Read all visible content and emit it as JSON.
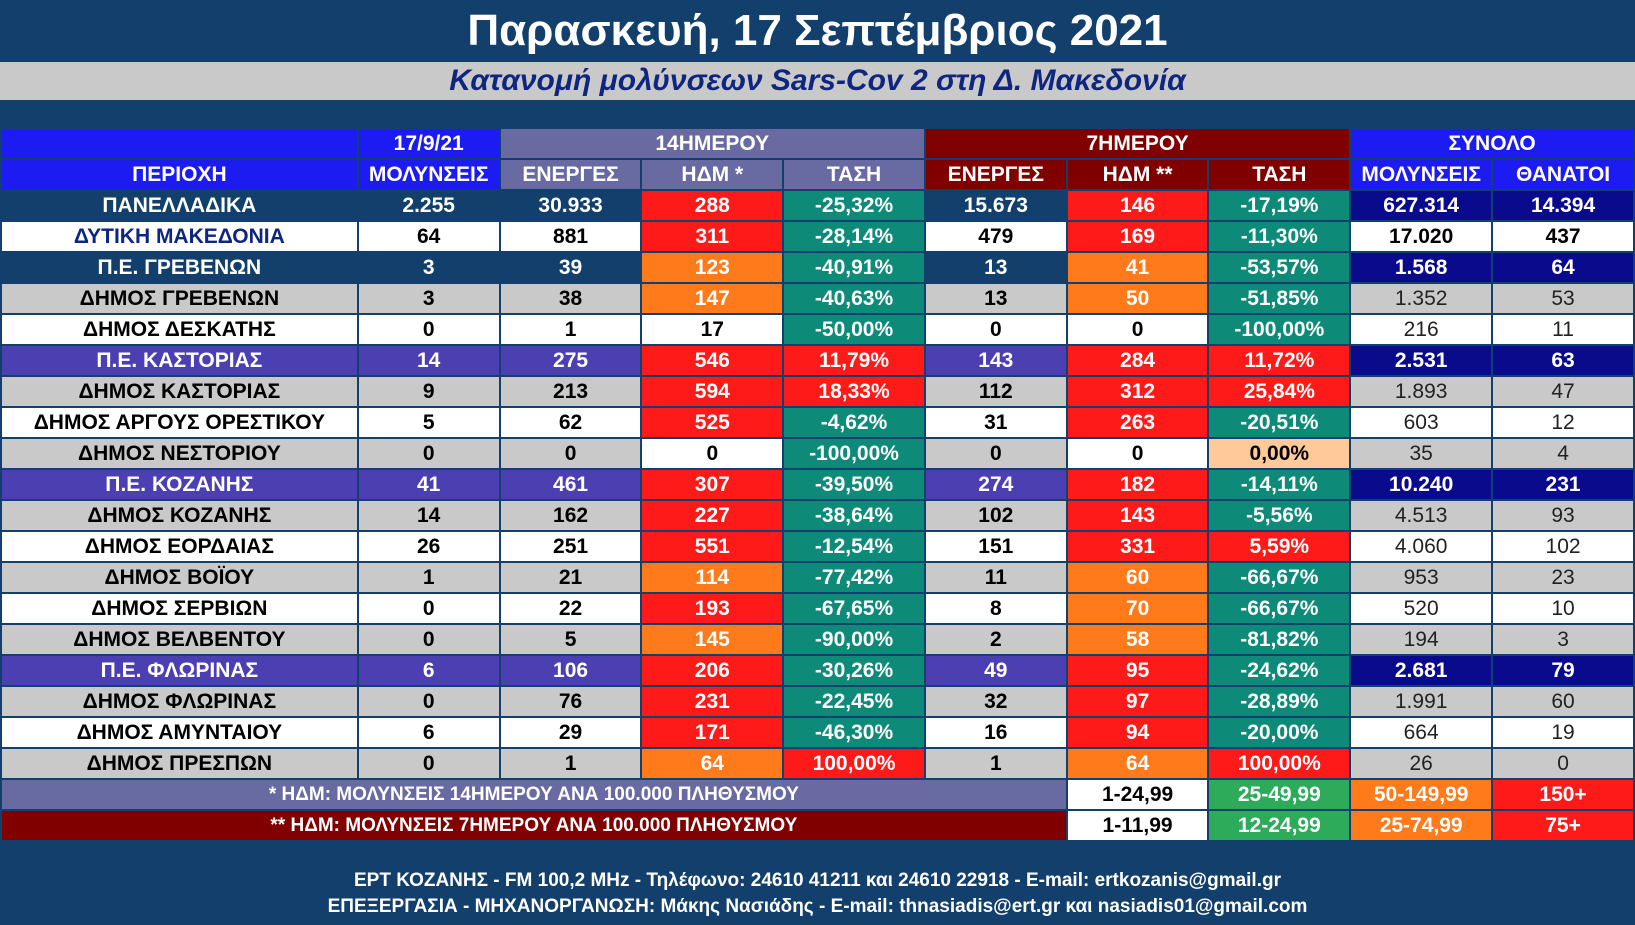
{
  "title": "Παρασκευή, 17 Σεπτέμβριος 2021",
  "subtitle": "Κατανομή μολύνσεων Sars-Cov 2 στη Δ. Μακεδονία",
  "header": {
    "region_label": "ΠΕΡΙΟΧΗ",
    "date_label": "17/9/21",
    "group_14": "14ΗΜΕΡΟΥ",
    "group_7": "7ΗΜΕΡΟΥ",
    "group_total": "ΣΥΝΟΛΟ",
    "col_infections": "ΜΟΛΥΝΣΕΙΣ",
    "col_active_14": "ΕΝΕΡΓΕΣ",
    "col_hdm_14": "ΗΔΜ *",
    "col_trend_14": "ΤΑΣΗ",
    "col_active_7": "ΕΝΕΡΓΕΣ",
    "col_hdm_7": "ΗΔΜ **",
    "col_trend_7": "ΤΑΣΗ",
    "col_total_infections": "ΜΟΛΥΝΣΕΙΣ",
    "col_deaths": "ΘΑΝΑΤΟΙ"
  },
  "colors": {
    "navy": "#123f6b",
    "white": "#ffffff",
    "grey": "#c9c9c9",
    "purple": "#4b3fb2",
    "red": "#ff1a1a",
    "orange": "#ff7a1a",
    "teal": "#0d8a78",
    "peach": "#ffc99a",
    "green": "#2eab5a",
    "darkblue": "#0a0a8c"
  },
  "rows": [
    {
      "type": "total",
      "name": "ΠΑΝΕΛΛΑΔΙΚΑ",
      "center": true,
      "infections": "2.255",
      "active14": "30.933",
      "hdm14": "288",
      "hdm14_color": "red",
      "trend14": "-25,32%",
      "trend14_color": "teal",
      "active7": "15.673",
      "hdm7": "146",
      "hdm7_color": "red",
      "trend7": "-17,19%",
      "trend7_color": "teal",
      "total": "627.314",
      "deaths": "14.394"
    },
    {
      "type": "region",
      "name": "ΔΥΤΙΚΗ ΜΑΚΕΔΟΝΙΑ",
      "center": true,
      "infections": "64",
      "active14": "881",
      "hdm14": "311",
      "hdm14_color": "red",
      "trend14": "-28,14%",
      "trend14_color": "teal",
      "active7": "479",
      "hdm7": "169",
      "hdm7_color": "red",
      "trend7": "-11,30%",
      "trend7_color": "teal",
      "total": "17.020",
      "deaths": "437"
    },
    {
      "type": "pe_navy",
      "name": "Π.Ε. ΓΡΕΒΕΝΩΝ",
      "center": true,
      "infections": "3",
      "active14": "39",
      "hdm14": "123",
      "hdm14_color": "orange",
      "trend14": "-40,91%",
      "trend14_color": "teal",
      "active7": "13",
      "hdm7": "41",
      "hdm7_color": "orange",
      "trend7": "-53,57%",
      "trend7_color": "teal",
      "total": "1.568",
      "deaths": "64"
    },
    {
      "type": "grey",
      "name": "ΔΗΜΟΣ ΓΡΕΒΕΝΩΝ",
      "center": false,
      "infections": "3",
      "active14": "38",
      "hdm14": "147",
      "hdm14_color": "orange",
      "trend14": "-40,63%",
      "trend14_color": "teal",
      "active7": "13",
      "hdm7": "50",
      "hdm7_color": "orange",
      "trend7": "-51,85%",
      "trend7_color": "teal",
      "total": "1.352",
      "deaths": "53"
    },
    {
      "type": "white",
      "name": "ΔΗΜΟΣ ΔΕΣΚΑΤΗΣ",
      "center": false,
      "infections": "0",
      "active14": "1",
      "hdm14": "17",
      "hdm14_color": "white",
      "trend14": "-50,00%",
      "trend14_color": "teal",
      "active7": "0",
      "hdm7": "0",
      "hdm7_color": "white",
      "trend7": "-100,00%",
      "trend7_color": "teal",
      "total": "216",
      "deaths": "11"
    },
    {
      "type": "pe_purple",
      "name": "Π.Ε. ΚΑΣΤΟΡΙΑΣ",
      "center": true,
      "infections": "14",
      "active14": "275",
      "hdm14": "546",
      "hdm14_color": "red",
      "trend14": "11,79%",
      "trend14_color": "red",
      "active7": "143",
      "hdm7": "284",
      "hdm7_color": "red",
      "trend7": "11,72%",
      "trend7_color": "red",
      "total": "2.531",
      "deaths": "63"
    },
    {
      "type": "grey",
      "name": "ΔΗΜΟΣ ΚΑΣΤΟΡΙΑΣ",
      "center": false,
      "infections": "9",
      "active14": "213",
      "hdm14": "594",
      "hdm14_color": "red",
      "trend14": "18,33%",
      "trend14_color": "red",
      "active7": "112",
      "hdm7": "312",
      "hdm7_color": "red",
      "trend7": "25,84%",
      "trend7_color": "red",
      "total": "1.893",
      "deaths": "47"
    },
    {
      "type": "white",
      "name": "ΔΗΜΟΣ ΑΡΓΟΥΣ ΟΡΕΣΤΙΚΟΥ",
      "center": false,
      "infections": "5",
      "active14": "62",
      "hdm14": "525",
      "hdm14_color": "red",
      "trend14": "-4,62%",
      "trend14_color": "teal",
      "active7": "31",
      "hdm7": "263",
      "hdm7_color": "red",
      "trend7": "-20,51%",
      "trend7_color": "teal",
      "total": "603",
      "deaths": "12"
    },
    {
      "type": "grey",
      "name": "ΔΗΜΟΣ ΝΕΣΤΟΡΙΟΥ",
      "center": false,
      "infections": "0",
      "active14": "0",
      "hdm14": "0",
      "hdm14_color": "white",
      "trend14": "-100,00%",
      "trend14_color": "teal",
      "active7": "0",
      "hdm7": "0",
      "hdm7_color": "white",
      "trend7": "0,00%",
      "trend7_color": "peach",
      "total": "35",
      "deaths": "4"
    },
    {
      "type": "pe_purple",
      "name": "Π.Ε. ΚΟΖΑΝΗΣ",
      "center": true,
      "infections": "41",
      "active14": "461",
      "hdm14": "307",
      "hdm14_color": "red",
      "trend14": "-39,50%",
      "trend14_color": "teal",
      "active7": "274",
      "hdm7": "182",
      "hdm7_color": "red",
      "trend7": "-14,11%",
      "trend7_color": "teal",
      "total": "10.240",
      "deaths": "231"
    },
    {
      "type": "grey",
      "name": "ΔΗΜΟΣ ΚΟΖΑΝΗΣ",
      "center": false,
      "infections": "14",
      "active14": "162",
      "hdm14": "227",
      "hdm14_color": "red",
      "trend14": "-38,64%",
      "trend14_color": "teal",
      "active7": "102",
      "hdm7": "143",
      "hdm7_color": "red",
      "trend7": "-5,56%",
      "trend7_color": "teal",
      "total": "4.513",
      "deaths": "93"
    },
    {
      "type": "white",
      "name": "ΔΗΜΟΣ ΕΟΡΔΑΙΑΣ",
      "center": false,
      "infections": "26",
      "active14": "251",
      "hdm14": "551",
      "hdm14_color": "red",
      "trend14": "-12,54%",
      "trend14_color": "teal",
      "active7": "151",
      "hdm7": "331",
      "hdm7_color": "red",
      "trend7": "5,59%",
      "trend7_color": "red",
      "total": "4.060",
      "deaths": "102"
    },
    {
      "type": "grey",
      "name": "ΔΗΜΟΣ ΒΟΪΟΥ",
      "center": false,
      "infections": "1",
      "active14": "21",
      "hdm14": "114",
      "hdm14_color": "orange",
      "trend14": "-77,42%",
      "trend14_color": "teal",
      "active7": "11",
      "hdm7": "60",
      "hdm7_color": "orange",
      "trend7": "-66,67%",
      "trend7_color": "teal",
      "total": "953",
      "deaths": "23"
    },
    {
      "type": "white",
      "name": "ΔΗΜΟΣ ΣΕΡΒΙΩΝ",
      "center": false,
      "infections": "0",
      "active14": "22",
      "hdm14": "193",
      "hdm14_color": "red",
      "trend14": "-67,65%",
      "trend14_color": "teal",
      "active7": "8",
      "hdm7": "70",
      "hdm7_color": "orange",
      "trend7": "-66,67%",
      "trend7_color": "teal",
      "total": "520",
      "deaths": "10"
    },
    {
      "type": "grey",
      "name": "ΔΗΜΟΣ ΒΕΛΒΕΝΤΟΥ",
      "center": false,
      "infections": "0",
      "active14": "5",
      "hdm14": "145",
      "hdm14_color": "orange",
      "trend14": "-90,00%",
      "trend14_color": "teal",
      "active7": "2",
      "hdm7": "58",
      "hdm7_color": "orange",
      "trend7": "-81,82%",
      "trend7_color": "teal",
      "total": "194",
      "deaths": "3"
    },
    {
      "type": "pe_purple",
      "name": "Π.Ε. ΦΛΩΡΙΝΑΣ",
      "center": true,
      "infections": "6",
      "active14": "106",
      "hdm14": "206",
      "hdm14_color": "red",
      "trend14": "-30,26%",
      "trend14_color": "teal",
      "active7": "49",
      "hdm7": "95",
      "hdm7_color": "red",
      "trend7": "-24,62%",
      "trend7_color": "teal",
      "total": "2.681",
      "deaths": "79"
    },
    {
      "type": "grey",
      "name": "ΔΗΜΟΣ ΦΛΩΡΙΝΑΣ",
      "center": false,
      "infections": "0",
      "active14": "76",
      "hdm14": "231",
      "hdm14_color": "red",
      "trend14": "-22,45%",
      "trend14_color": "teal",
      "active7": "32",
      "hdm7": "97",
      "hdm7_color": "red",
      "trend7": "-28,89%",
      "trend7_color": "teal",
      "total": "1.991",
      "deaths": "60"
    },
    {
      "type": "white",
      "name": "ΔΗΜΟΣ ΑΜΥΝΤΑΙΟΥ",
      "center": false,
      "infections": "6",
      "active14": "29",
      "hdm14": "171",
      "hdm14_color": "red",
      "trend14": "-46,30%",
      "trend14_color": "teal",
      "active7": "16",
      "hdm7": "94",
      "hdm7_color": "red",
      "trend7": "-20,00%",
      "trend7_color": "teal",
      "total": "664",
      "deaths": "19"
    },
    {
      "type": "grey",
      "name": "ΔΗΜΟΣ ΠΡΕΣΠΩΝ",
      "center": false,
      "infections": "0",
      "active14": "1",
      "hdm14": "64",
      "hdm14_color": "orange",
      "trend14": "100,00%",
      "trend14_color": "red",
      "active7": "1",
      "hdm7": "64",
      "hdm7_color": "orange",
      "trend7": "100,00%",
      "trend7_color": "red",
      "total": "26",
      "deaths": "0"
    }
  ],
  "legend": [
    {
      "label": "* ΗΔΜ: ΜΟΛΥΝΣΕΙΣ 14ΗΜΕΡΟΥ ΑΝΑ 100.000 ΠΛΗΘΥΣΜΟΥ",
      "style": "legend-purple",
      "ranges": [
        "1-24,99",
        "25-49,99",
        "50-149,99",
        "150+"
      ]
    },
    {
      "label": "** ΗΔΜ: ΜΟΛΥΝΣΕΙΣ 7ΗΜΕΡΟΥ ΑΝΑ 100.000 ΠΛΗΘΥΣΜΟΥ",
      "style": "legend-dark",
      "ranges": [
        "1-11,99",
        "12-24,99",
        "25-74,99",
        "75+"
      ]
    }
  ],
  "footer": {
    "line1": "ΕΡΤ ΚΟΖΑΝΗΣ - FM 100,2 MHz - Τηλέφωνο:  24610 41211 και 24610 22918 - E-mail: ertkozanis@gmail.gr",
    "line2": "ΕΠΕΞΕΡΓΑΣΙΑ  -  ΜΗΧΑΝΟΡΓΑΝΩΣΗ: Μάκης Νασιάδης   -    E-mail: thnasiadis@ert.gr και nasiadis01@gmail.com"
  }
}
